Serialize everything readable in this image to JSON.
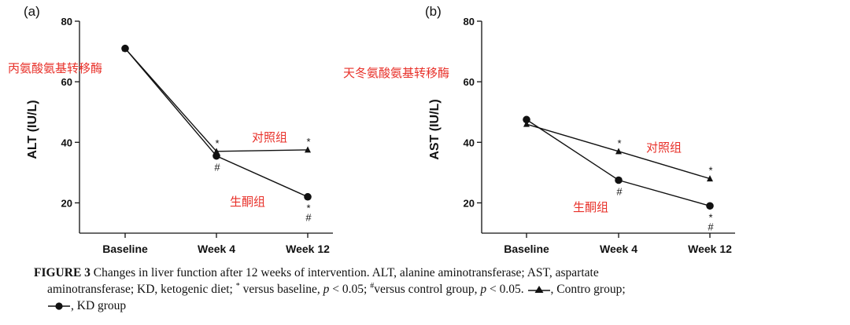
{
  "chart_data": [
    {
      "panel": "(a)",
      "type": "line",
      "categories": [
        "Baseline",
        "Week 4",
        "Week 12"
      ],
      "ylabel": "ALT (IU/L)",
      "ylim": [
        10,
        80
      ],
      "yticks": [
        20,
        40,
        60,
        80
      ],
      "annotation": "丙氨酸氨基转移酶",
      "series": [
        {
          "name": "对照组",
          "marker": "triangle",
          "values": [
            71,
            37,
            37.5
          ],
          "marks": [
            "",
            "*",
            "*"
          ]
        },
        {
          "name": "生酮组",
          "marker": "circle",
          "values": [
            71,
            35.5,
            22
          ],
          "marks": [
            "",
            "#",
            "*#"
          ]
        }
      ]
    },
    {
      "panel": "(b)",
      "type": "line",
      "categories": [
        "Baseline",
        "Week 4",
        "Week 12"
      ],
      "ylabel": "AST (IU/L)",
      "ylim": [
        10,
        80
      ],
      "yticks": [
        20,
        40,
        60,
        80
      ],
      "annotation": "天冬氨酸氨基转移酶",
      "series": [
        {
          "name": "对照组",
          "marker": "triangle",
          "values": [
            46,
            37,
            28
          ],
          "marks": [
            "",
            "*",
            "*"
          ]
        },
        {
          "name": "生酮组",
          "marker": "circle",
          "values": [
            47.5,
            27.5,
            19
          ],
          "marks": [
            "",
            "#",
            "*#"
          ]
        }
      ]
    }
  ],
  "caption": {
    "label": "FIGURE 3",
    "text_1": "Changes in liver function after 12 weeks of intervention. ALT, alanine aminotransferase; AST, aspartate",
    "text_2a": "aminotransferase; KD, ketogenic diet;",
    "sup_star": "*",
    "text_2b": "versus baseline,",
    "p_1": "p",
    "text_2c": "< 0.05;",
    "sup_hash": "#",
    "text_2d": "versus control group,",
    "p_2": "p",
    "text_2e": "< 0.05.",
    "text_2f": ", Contro group;",
    "text_3": ", KD group"
  }
}
